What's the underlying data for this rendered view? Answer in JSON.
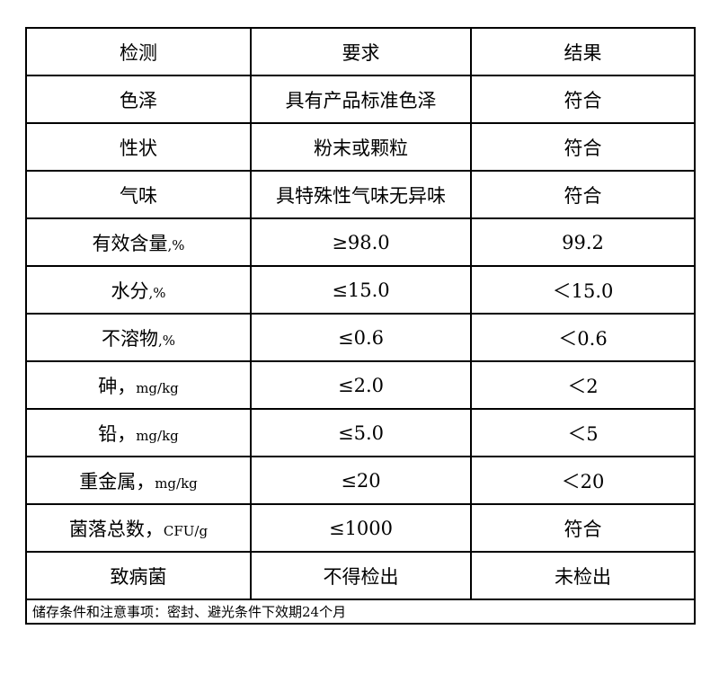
{
  "header": [
    "检测",
    "要求",
    "结果"
  ],
  "rows": [
    {
      "item": "色泽",
      "unit": "",
      "requirement": "具有产品标准色泽",
      "result": "符合"
    },
    {
      "item": "性状",
      "unit": "",
      "requirement": "粉末或颗粒",
      "result": "符合"
    },
    {
      "item": "气味",
      "unit": "",
      "requirement": "具特殊性气味无异味",
      "result": "符合"
    },
    {
      "item": "有效含量",
      "unit": ",%",
      "requirement": "≥98.0",
      "result": "99.2"
    },
    {
      "item": "水分",
      "unit": ",%",
      "requirement": "≤15.0",
      "result": "＜15.0"
    },
    {
      "item": "不溶物",
      "unit": ",%",
      "requirement": "≤0.6",
      "result": "＜0.6"
    },
    {
      "item": "砷，",
      "unit": "mg/kg",
      "requirement": "≤2.0",
      "result": "＜2"
    },
    {
      "item": "铅，",
      "unit": "mg/kg",
      "requirement": "≤5.0",
      "result": "＜5"
    },
    {
      "item": "重金属，",
      "unit": "mg/kg",
      "requirement": "≤20",
      "result": "＜20"
    },
    {
      "item": "菌落总数，",
      "unit": "CFU/g",
      "requirement": "≤1000",
      "result": "符合"
    },
    {
      "item": "致病菌",
      "unit": "",
      "requirement": "不得检出",
      "result": "未检出"
    }
  ],
  "footer": "储存条件和注意事项：密封、避光条件下效期24个月"
}
